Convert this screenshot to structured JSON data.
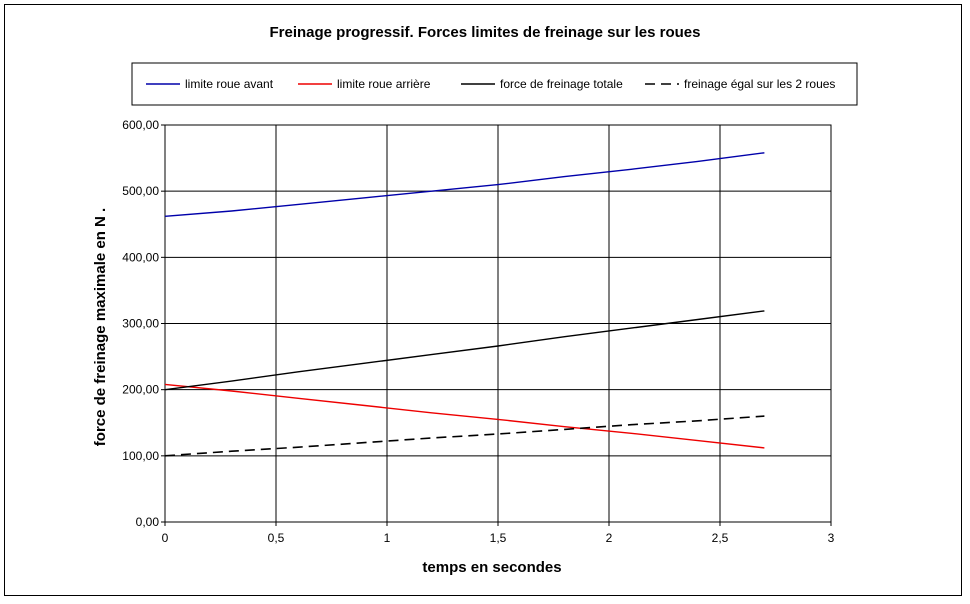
{
  "chart_data": {
    "type": "line",
    "title": "Freinage progressif. Forces limites de freinage sur les roues",
    "xlabel": "temps en secondes",
    "ylabel": "force de freinage maximale en N   .",
    "xlim": [
      0,
      3
    ],
    "ylim": [
      0,
      600
    ],
    "x_ticks": [
      "0",
      "0,5",
      "1",
      "1,5",
      "2",
      "2,5",
      "3"
    ],
    "y_ticks": [
      "0,00",
      "100,00",
      "200,00",
      "300,00",
      "400,00",
      "500,00",
      "600,00"
    ],
    "grid": true,
    "legend_position": "top",
    "x": [
      0,
      0.3,
      0.6,
      0.9,
      1.2,
      1.5,
      1.8,
      2.1,
      2.4,
      2.7
    ],
    "series": [
      {
        "name": "limite roue avant",
        "color": "#0000aa",
        "style": "solid",
        "values": [
          462,
          470,
          480,
          490,
          500,
          510,
          522,
          533,
          545,
          558
        ]
      },
      {
        "name": "limite roue arrière",
        "color": "#ee0000",
        "style": "solid",
        "values": [
          208,
          198,
          187,
          176,
          165,
          155,
          144,
          134,
          123,
          112
        ]
      },
      {
        "name": "force de freinage totale",
        "color": "#000000",
        "style": "solid",
        "values": [
          200,
          213,
          227,
          240,
          253,
          266,
          280,
          293,
          306,
          319
        ]
      },
      {
        "name": "freinage égal sur les 2 roues",
        "color": "#000000",
        "style": "dashed",
        "values": [
          100,
          107,
          113,
          120,
          127,
          133,
          140,
          147,
          153,
          160
        ]
      }
    ]
  }
}
